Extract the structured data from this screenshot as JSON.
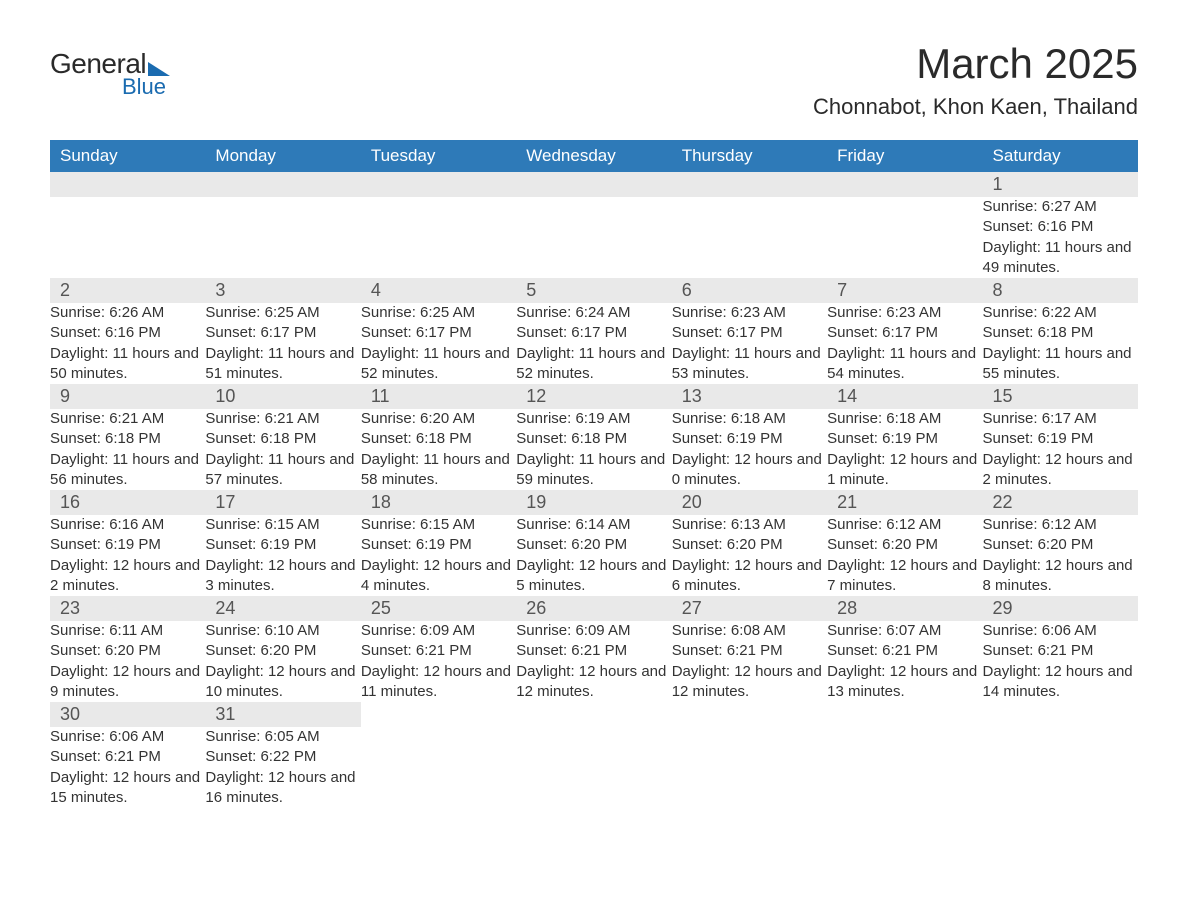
{
  "logo": {
    "general": "General",
    "blue": "Blue"
  },
  "title": "March 2025",
  "location": "Chonnabot, Khon Kaen, Thailand",
  "colors": {
    "header_bg": "#2e7ab8",
    "header_text": "#ffffff",
    "daynum_bg": "#e9e9e9",
    "row_divider": "#2e7ab8",
    "text": "#333333",
    "logo_blue": "#1a6bb0"
  },
  "typography": {
    "title_fontsize": 42,
    "location_fontsize": 22,
    "header_fontsize": 17,
    "daynum_fontsize": 18,
    "body_fontsize": 15
  },
  "daysOfWeek": [
    "Sunday",
    "Monday",
    "Tuesday",
    "Wednesday",
    "Thursday",
    "Friday",
    "Saturday"
  ],
  "weeks": [
    {
      "cells": [
        null,
        null,
        null,
        null,
        null,
        null,
        {
          "day": "1",
          "sunrise": "Sunrise: 6:27 AM",
          "sunset": "Sunset: 6:16 PM",
          "daylight": "Daylight: 11 hours and 49 minutes."
        }
      ]
    },
    {
      "cells": [
        {
          "day": "2",
          "sunrise": "Sunrise: 6:26 AM",
          "sunset": "Sunset: 6:16 PM",
          "daylight": "Daylight: 11 hours and 50 minutes."
        },
        {
          "day": "3",
          "sunrise": "Sunrise: 6:25 AM",
          "sunset": "Sunset: 6:17 PM",
          "daylight": "Daylight: 11 hours and 51 minutes."
        },
        {
          "day": "4",
          "sunrise": "Sunrise: 6:25 AM",
          "sunset": "Sunset: 6:17 PM",
          "daylight": "Daylight: 11 hours and 52 minutes."
        },
        {
          "day": "5",
          "sunrise": "Sunrise: 6:24 AM",
          "sunset": "Sunset: 6:17 PM",
          "daylight": "Daylight: 11 hours and 52 minutes."
        },
        {
          "day": "6",
          "sunrise": "Sunrise: 6:23 AM",
          "sunset": "Sunset: 6:17 PM",
          "daylight": "Daylight: 11 hours and 53 minutes."
        },
        {
          "day": "7",
          "sunrise": "Sunrise: 6:23 AM",
          "sunset": "Sunset: 6:17 PM",
          "daylight": "Daylight: 11 hours and 54 minutes."
        },
        {
          "day": "8",
          "sunrise": "Sunrise: 6:22 AM",
          "sunset": "Sunset: 6:18 PM",
          "daylight": "Daylight: 11 hours and 55 minutes."
        }
      ]
    },
    {
      "cells": [
        {
          "day": "9",
          "sunrise": "Sunrise: 6:21 AM",
          "sunset": "Sunset: 6:18 PM",
          "daylight": "Daylight: 11 hours and 56 minutes."
        },
        {
          "day": "10",
          "sunrise": "Sunrise: 6:21 AM",
          "sunset": "Sunset: 6:18 PM",
          "daylight": "Daylight: 11 hours and 57 minutes."
        },
        {
          "day": "11",
          "sunrise": "Sunrise: 6:20 AM",
          "sunset": "Sunset: 6:18 PM",
          "daylight": "Daylight: 11 hours and 58 minutes."
        },
        {
          "day": "12",
          "sunrise": "Sunrise: 6:19 AM",
          "sunset": "Sunset: 6:18 PM",
          "daylight": "Daylight: 11 hours and 59 minutes."
        },
        {
          "day": "13",
          "sunrise": "Sunrise: 6:18 AM",
          "sunset": "Sunset: 6:19 PM",
          "daylight": "Daylight: 12 hours and 0 minutes."
        },
        {
          "day": "14",
          "sunrise": "Sunrise: 6:18 AM",
          "sunset": "Sunset: 6:19 PM",
          "daylight": "Daylight: 12 hours and 1 minute."
        },
        {
          "day": "15",
          "sunrise": "Sunrise: 6:17 AM",
          "sunset": "Sunset: 6:19 PM",
          "daylight": "Daylight: 12 hours and 2 minutes."
        }
      ]
    },
    {
      "cells": [
        {
          "day": "16",
          "sunrise": "Sunrise: 6:16 AM",
          "sunset": "Sunset: 6:19 PM",
          "daylight": "Daylight: 12 hours and 2 minutes."
        },
        {
          "day": "17",
          "sunrise": "Sunrise: 6:15 AM",
          "sunset": "Sunset: 6:19 PM",
          "daylight": "Daylight: 12 hours and 3 minutes."
        },
        {
          "day": "18",
          "sunrise": "Sunrise: 6:15 AM",
          "sunset": "Sunset: 6:19 PM",
          "daylight": "Daylight: 12 hours and 4 minutes."
        },
        {
          "day": "19",
          "sunrise": "Sunrise: 6:14 AM",
          "sunset": "Sunset: 6:20 PM",
          "daylight": "Daylight: 12 hours and 5 minutes."
        },
        {
          "day": "20",
          "sunrise": "Sunrise: 6:13 AM",
          "sunset": "Sunset: 6:20 PM",
          "daylight": "Daylight: 12 hours and 6 minutes."
        },
        {
          "day": "21",
          "sunrise": "Sunrise: 6:12 AM",
          "sunset": "Sunset: 6:20 PM",
          "daylight": "Daylight: 12 hours and 7 minutes."
        },
        {
          "day": "22",
          "sunrise": "Sunrise: 6:12 AM",
          "sunset": "Sunset: 6:20 PM",
          "daylight": "Daylight: 12 hours and 8 minutes."
        }
      ]
    },
    {
      "cells": [
        {
          "day": "23",
          "sunrise": "Sunrise: 6:11 AM",
          "sunset": "Sunset: 6:20 PM",
          "daylight": "Daylight: 12 hours and 9 minutes."
        },
        {
          "day": "24",
          "sunrise": "Sunrise: 6:10 AM",
          "sunset": "Sunset: 6:20 PM",
          "daylight": "Daylight: 12 hours and 10 minutes."
        },
        {
          "day": "25",
          "sunrise": "Sunrise: 6:09 AM",
          "sunset": "Sunset: 6:21 PM",
          "daylight": "Daylight: 12 hours and 11 minutes."
        },
        {
          "day": "26",
          "sunrise": "Sunrise: 6:09 AM",
          "sunset": "Sunset: 6:21 PM",
          "daylight": "Daylight: 12 hours and 12 minutes."
        },
        {
          "day": "27",
          "sunrise": "Sunrise: 6:08 AM",
          "sunset": "Sunset: 6:21 PM",
          "daylight": "Daylight: 12 hours and 12 minutes."
        },
        {
          "day": "28",
          "sunrise": "Sunrise: 6:07 AM",
          "sunset": "Sunset: 6:21 PM",
          "daylight": "Daylight: 12 hours and 13 minutes."
        },
        {
          "day": "29",
          "sunrise": "Sunrise: 6:06 AM",
          "sunset": "Sunset: 6:21 PM",
          "daylight": "Daylight: 12 hours and 14 minutes."
        }
      ]
    },
    {
      "cells": [
        {
          "day": "30",
          "sunrise": "Sunrise: 6:06 AM",
          "sunset": "Sunset: 6:21 PM",
          "daylight": "Daylight: 12 hours and 15 minutes."
        },
        {
          "day": "31",
          "sunrise": "Sunrise: 6:05 AM",
          "sunset": "Sunset: 6:22 PM",
          "daylight": "Daylight: 12 hours and 16 minutes."
        },
        null,
        null,
        null,
        null,
        null
      ]
    }
  ]
}
